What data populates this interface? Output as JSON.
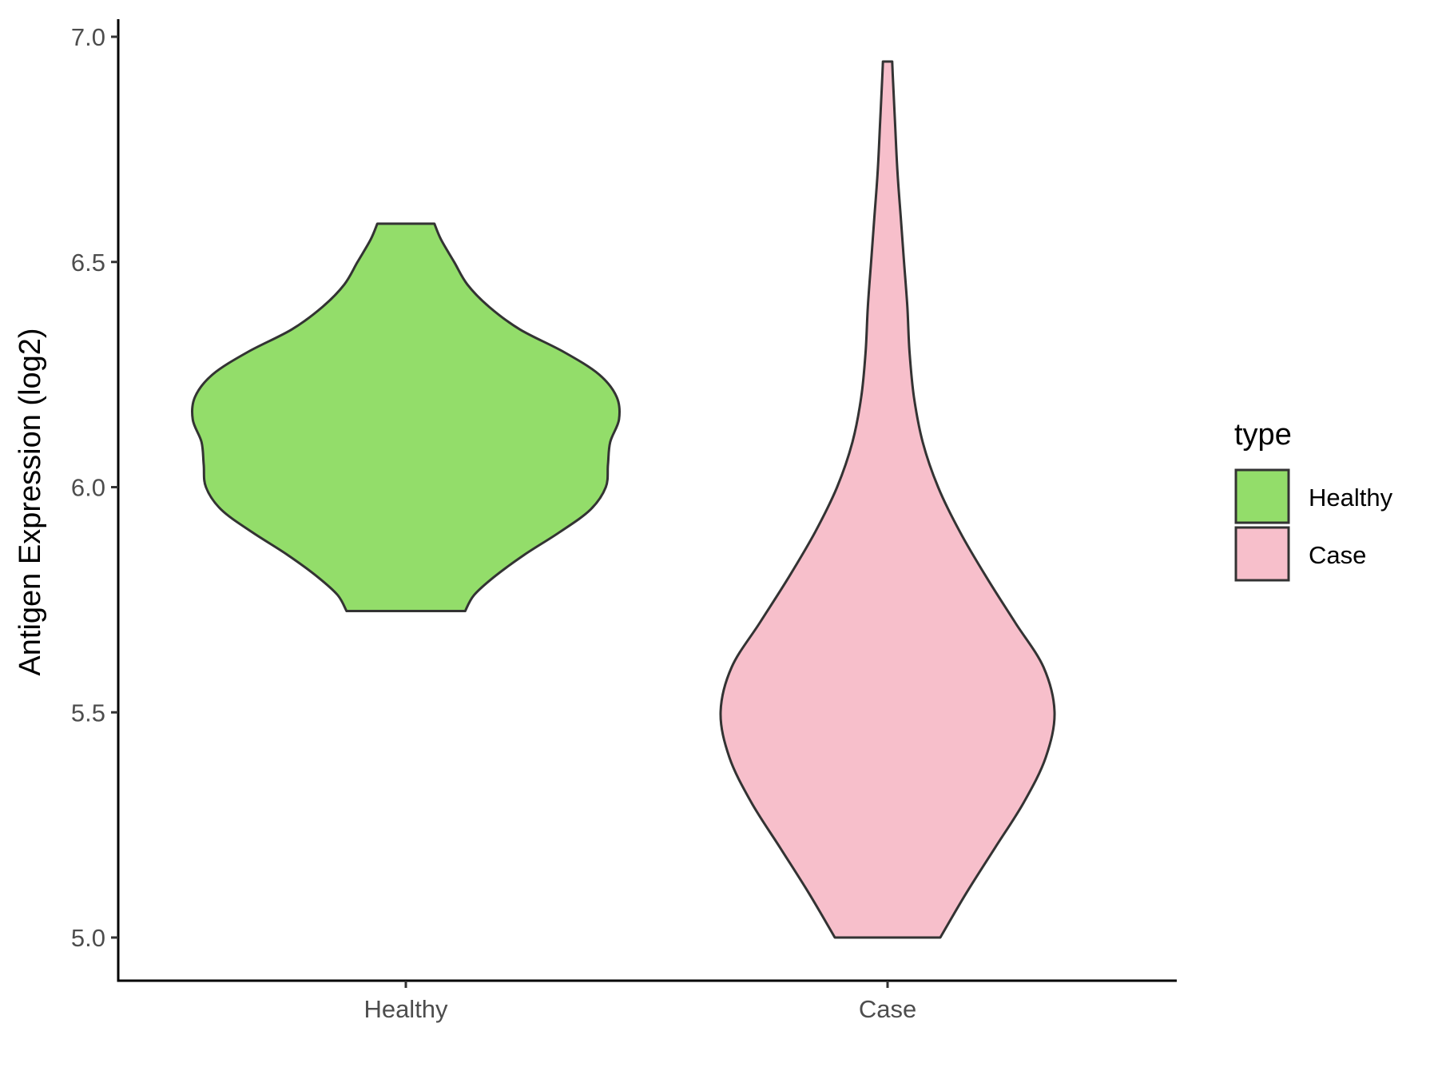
{
  "chart_data": {
    "type": "violin",
    "title": "",
    "xlabel": "",
    "ylabel": "Antigen Expression (log2)",
    "ylim": [
      4.9,
      7.04
    ],
    "yticks": [
      5.0,
      5.5,
      6.0,
      6.5,
      7.0
    ],
    "ytick_labels": [
      "5.0",
      "5.5",
      "6.0",
      "6.5",
      "7.0"
    ],
    "categories": [
      "Healthy",
      "Case"
    ],
    "grid": false,
    "legend": {
      "title": "type",
      "position": "right",
      "entries": [
        {
          "label": "Healthy",
          "color": "#93dd6a"
        },
        {
          "label": "Case",
          "color": "#f7bfcb"
        }
      ]
    },
    "outline_color": "#333333",
    "series": [
      {
        "name": "Healthy",
        "color": "#93dd6a",
        "min": 5.725,
        "max": 6.585,
        "profile": [
          [
            5.725,
            0.27
          ],
          [
            5.76,
            0.31
          ],
          [
            5.8,
            0.4
          ],
          [
            5.85,
            0.54
          ],
          [
            5.9,
            0.7
          ],
          [
            5.95,
            0.84
          ],
          [
            6.0,
            0.91
          ],
          [
            6.05,
            0.92
          ],
          [
            6.1,
            0.93
          ],
          [
            6.15,
            0.97
          ],
          [
            6.2,
            0.96
          ],
          [
            6.25,
            0.88
          ],
          [
            6.3,
            0.72
          ],
          [
            6.35,
            0.52
          ],
          [
            6.4,
            0.38
          ],
          [
            6.45,
            0.28
          ],
          [
            6.5,
            0.22
          ],
          [
            6.55,
            0.16
          ],
          [
            6.585,
            0.13
          ]
        ]
      },
      {
        "name": "Case",
        "color": "#f7bfcb",
        "min": 5.0,
        "max": 6.945,
        "profile": [
          [
            5.0,
            0.24
          ],
          [
            5.1,
            0.36
          ],
          [
            5.2,
            0.49
          ],
          [
            5.3,
            0.62
          ],
          [
            5.4,
            0.72
          ],
          [
            5.5,
            0.76
          ],
          [
            5.6,
            0.71
          ],
          [
            5.7,
            0.58
          ],
          [
            5.8,
            0.45
          ],
          [
            5.9,
            0.33
          ],
          [
            6.0,
            0.23
          ],
          [
            6.1,
            0.16
          ],
          [
            6.2,
            0.12
          ],
          [
            6.3,
            0.1
          ],
          [
            6.4,
            0.09
          ],
          [
            6.5,
            0.075
          ],
          [
            6.6,
            0.06
          ],
          [
            6.7,
            0.045
          ],
          [
            6.8,
            0.035
          ],
          [
            6.9,
            0.025
          ],
          [
            6.945,
            0.021
          ]
        ]
      }
    ]
  }
}
